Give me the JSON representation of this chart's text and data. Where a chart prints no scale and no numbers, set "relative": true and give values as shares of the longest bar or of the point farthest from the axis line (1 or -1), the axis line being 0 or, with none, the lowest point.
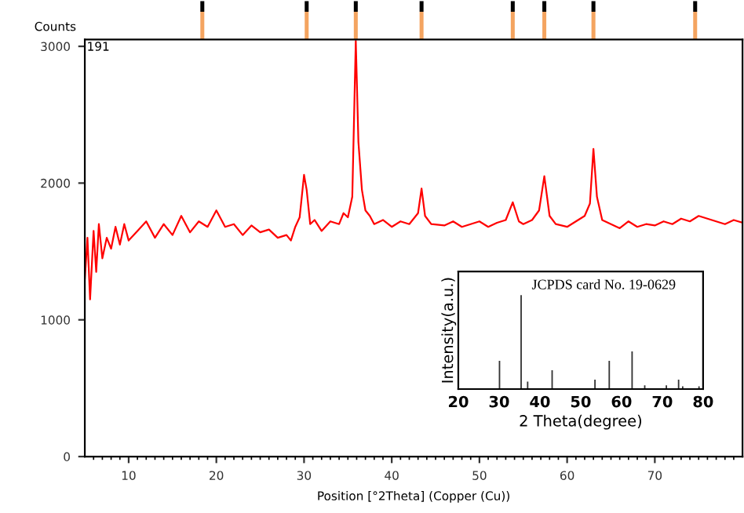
{
  "chart_data": [
    {
      "type": "bar",
      "relative": true,
      "stacked": true,
      "tick_labels": false,
      "xlim": [
        5,
        80
      ],
      "x": [
        18.4,
        30.3,
        35.9,
        43.4,
        53.8,
        57.4,
        63.0,
        74.6
      ],
      "series": [
        {
          "color": "#f4a460",
          "values": [
            0.72,
            0.72,
            0.72,
            0.72,
            0.72,
            0.72,
            0.72,
            0.72
          ]
        },
        {
          "color": "#000000",
          "values": [
            0.28,
            0.28,
            0.28,
            0.28,
            0.28,
            0.28,
            0.28,
            0.28
          ]
        }
      ]
    },
    {
      "type": "line",
      "ylabel": "Counts",
      "xlabel": "Position [°2Theta] (Copper (Cu))",
      "annotations": [
        "191"
      ],
      "x": [
        5,
        5.3,
        5.6,
        6,
        6.3,
        6.6,
        7,
        7.5,
        8,
        8.5,
        9,
        9.5,
        10,
        11,
        12,
        13,
        14,
        15,
        16,
        17,
        18,
        19,
        20,
        21,
        22,
        23,
        24,
        25,
        26,
        27,
        28,
        28.5,
        29,
        29.5,
        30,
        30.3,
        30.7,
        31.2,
        32,
        33,
        34,
        34.5,
        35,
        35.5,
        35.9,
        36.2,
        36.6,
        37,
        37.5,
        38,
        39,
        40,
        41,
        42,
        43,
        43.4,
        43.8,
        44.5,
        46,
        47,
        48,
        49,
        50,
        51,
        52,
        53,
        53.8,
        54.5,
        55,
        56,
        56.8,
        57.4,
        58,
        58.7,
        60,
        61,
        62,
        62.6,
        63,
        63.4,
        64,
        65,
        66,
        67,
        68,
        69,
        70,
        71,
        72,
        73,
        74,
        75,
        76,
        77,
        78,
        79,
        80
      ],
      "series": [
        {
          "color": "#ff0000",
          "values": [
            1300,
            1600,
            1150,
            1650,
            1350,
            1700,
            1450,
            1600,
            1520,
            1680,
            1550,
            1700,
            1580,
            1650,
            1720,
            1600,
            1700,
            1620,
            1760,
            1640,
            1720,
            1680,
            1800,
            1680,
            1700,
            1620,
            1690,
            1640,
            1660,
            1600,
            1620,
            1580,
            1680,
            1750,
            2060,
            1950,
            1700,
            1730,
            1650,
            1720,
            1700,
            1780,
            1750,
            1900,
            3040,
            2300,
            1950,
            1800,
            1760,
            1700,
            1730,
            1680,
            1720,
            1700,
            1780,
            1960,
            1760,
            1700,
            1690,
            1720,
            1680,
            1700,
            1720,
            1680,
            1710,
            1730,
            1860,
            1720,
            1700,
            1730,
            1800,
            2050,
            1760,
            1700,
            1680,
            1720,
            1760,
            1850,
            2250,
            1900,
            1730,
            1700,
            1670,
            1720,
            1680,
            1700,
            1690,
            1720,
            1700,
            1740,
            1720,
            1760,
            1740,
            1720,
            1700,
            1730,
            1710
          ]
        }
      ],
      "xlim": [
        5,
        80
      ],
      "ylim": [
        0,
        3050
      ],
      "xticks": [
        10,
        20,
        30,
        40,
        50,
        60,
        70
      ],
      "yticks": [
        0,
        1000,
        2000,
        3000
      ]
    },
    {
      "type": "bar",
      "relative": true,
      "ylabel": "Intensity(a.u.)",
      "xlabel": "2 Theta(degree)",
      "annotations": [
        "JCPDS card No. 19-0629"
      ],
      "x": [
        30.1,
        35.4,
        37.0,
        43.0,
        53.5,
        57.0,
        62.6,
        65.7,
        71.0,
        74.0,
        75.0,
        79.0
      ],
      "series": [
        {
          "color": "#333333",
          "values": [
            0.3,
            1,
            0.08,
            0.2,
            0.1,
            0.3,
            0.4,
            0.04,
            0.04,
            0.1,
            0.03,
            0.03
          ]
        }
      ],
      "xlim": [
        20,
        80
      ],
      "xticks": [
        20,
        30,
        40,
        50,
        60,
        70,
        80
      ],
      "tick_labels": "x"
    }
  ]
}
